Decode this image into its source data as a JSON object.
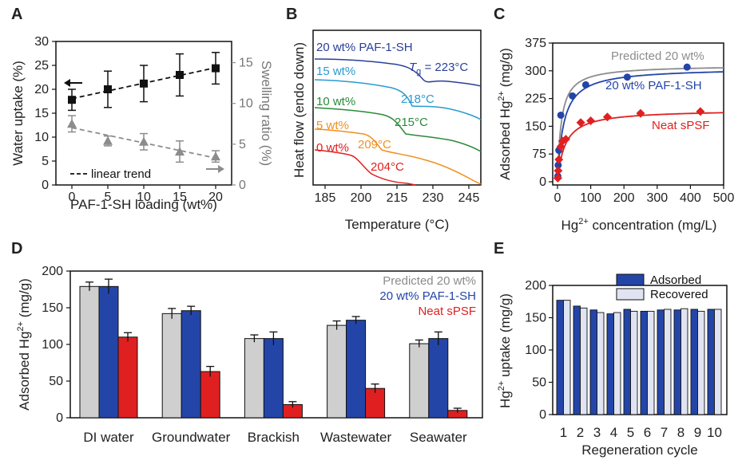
{
  "colors": {
    "black": "#111111",
    "gray": "#8c8c8c",
    "blue": "#2445a8",
    "red": "#e02020",
    "lightgray": "#cfcfcf",
    "lightblue": "#dfe3f2",
    "orange": "#f0901e",
    "green": "#2a8a3a",
    "lightblue2": "#2a9ad0",
    "darkred": "#d33030"
  },
  "chart_data": [
    {
      "panel": "A",
      "type": "scatter",
      "xlabel": "PAF-1-SH loading (wt%)",
      "ylabel": "Water uptake (%)",
      "ylabel_right": "Swelling ratio (%)",
      "x": [
        0,
        5,
        10,
        15,
        20
      ],
      "xticks": [
        "0",
        "5",
        "10",
        "15",
        "20"
      ],
      "ylim": [
        0,
        30
      ],
      "yticks": [
        "0",
        "5",
        "10",
        "15",
        "20",
        "25",
        "30"
      ],
      "ylim_right": [
        0,
        17.6
      ],
      "yticks_right": [
        "0",
        "5",
        "10",
        "15"
      ],
      "series": [
        {
          "name": "Water uptake",
          "axis": "left",
          "values": [
            17.8,
            20.0,
            21.2,
            23.0,
            24.4
          ],
          "errors": [
            2.2,
            3.8,
            3.8,
            4.4,
            3.3
          ]
        },
        {
          "name": "Swelling ratio",
          "axis": "right",
          "values": [
            7.5,
            5.4,
            5.3,
            4.1,
            3.5
          ],
          "errors": [
            1.0,
            0.6,
            1.0,
            1.3,
            0.7
          ]
        }
      ],
      "legend": "linear trend"
    },
    {
      "panel": "B",
      "type": "line",
      "xlabel": "Temperature (°C)",
      "ylabel": "Heat flow (endo down)",
      "xlim": [
        180,
        250
      ],
      "xticks": [
        "185",
        "200",
        "215",
        "230",
        "245"
      ],
      "curves": [
        {
          "name": "20 wt% PAF-1-SH",
          "tg": "T",
          "tg_sub": "g",
          "tg_value": " = 223°C"
        },
        {
          "name": "15 wt%",
          "tg_value": "218°C"
        },
        {
          "name": "10 wt%",
          "tg_value": "215°C"
        },
        {
          "name": "5 wt%",
          "tg_value": "209°C"
        },
        {
          "name": "0 wt%",
          "tg_value": "204°C"
        }
      ]
    },
    {
      "panel": "C",
      "type": "scatter",
      "xlabel_pre": "Hg",
      "xlabel_sup": "2+",
      "xlabel_post": " concentration (mg/L)",
      "ylabel_pre": "Adsorbed Hg",
      "ylabel_sup": "2+",
      "ylabel_post": " (mg/g)",
      "xlim": [
        0,
        500
      ],
      "xticks": [
        "0",
        "100",
        "200",
        "300",
        "400",
        "500"
      ],
      "ylim": [
        0,
        375
      ],
      "yticks": [
        "0",
        "75",
        "150",
        "225",
        "300",
        "375"
      ],
      "series": [
        {
          "name": "Predicted 20 wt%",
          "kind": "line",
          "qmax": 315,
          "b": 0.09
        },
        {
          "name": "20 wt% PAF-1-SH",
          "kind": "points+fit",
          "x": [
            1,
            2,
            4,
            10,
            45,
            85,
            210,
            390
          ],
          "y": [
            15,
            45,
            85,
            180,
            232,
            262,
            283,
            310
          ],
          "qmax": 308,
          "b": 0.055
        },
        {
          "name": "Neat sPSF",
          "kind": "points+fit",
          "x": [
            1,
            2,
            4,
            10,
            15,
            25,
            70,
            100,
            150,
            250,
            430
          ],
          "y": [
            10,
            30,
            60,
            95,
            110,
            115,
            160,
            165,
            175,
            185,
            190
          ],
          "qmax": 195,
          "b": 0.045
        }
      ]
    },
    {
      "panel": "D",
      "type": "bar",
      "ylabel_pre": "Adsorbed Hg",
      "ylabel_sup": "2+",
      "ylabel_post": " (mg/g)",
      "categories": [
        "DI water",
        "Groundwater",
        "Brackish",
        "Wastewater",
        "Seawater"
      ],
      "ylim": [
        0,
        200
      ],
      "yticks": [
        "0",
        "50",
        "100",
        "150",
        "200"
      ],
      "series": [
        {
          "name": "Predicted 20 wt%",
          "values": [
            179,
            142,
            108,
            126,
            101
          ],
          "errors": [
            6,
            7,
            5,
            6,
            5
          ]
        },
        {
          "name": "20 wt% PAF-1-SH",
          "values": [
            179,
            146,
            108,
            133,
            108
          ],
          "errors": [
            10,
            6,
            9,
            5,
            9
          ]
        },
        {
          "name": "Neat sPSF",
          "values": [
            110,
            63,
            18,
            40,
            10
          ],
          "errors": [
            6,
            7,
            4,
            6,
            3
          ]
        }
      ]
    },
    {
      "panel": "E",
      "type": "bar",
      "xlabel": "Regeneration cycle",
      "ylabel_pre": "Hg",
      "ylabel_sup": "2+",
      "ylabel_post": " uptake (mg/g)",
      "categories": [
        "1",
        "2",
        "3",
        "4",
        "5",
        "6",
        "7",
        "8",
        "9",
        "10"
      ],
      "ylim": [
        0,
        200
      ],
      "yticks": [
        "0",
        "50",
        "100",
        "150",
        "200"
      ],
      "series": [
        {
          "name": "Adsorbed",
          "values": [
            177,
            168,
            162,
            156,
            163,
            160,
            162,
            162,
            163,
            163
          ]
        },
        {
          "name": "Recovered",
          "values": [
            177,
            165,
            158,
            158,
            160,
            160,
            163,
            164,
            160,
            163
          ]
        }
      ]
    }
  ]
}
